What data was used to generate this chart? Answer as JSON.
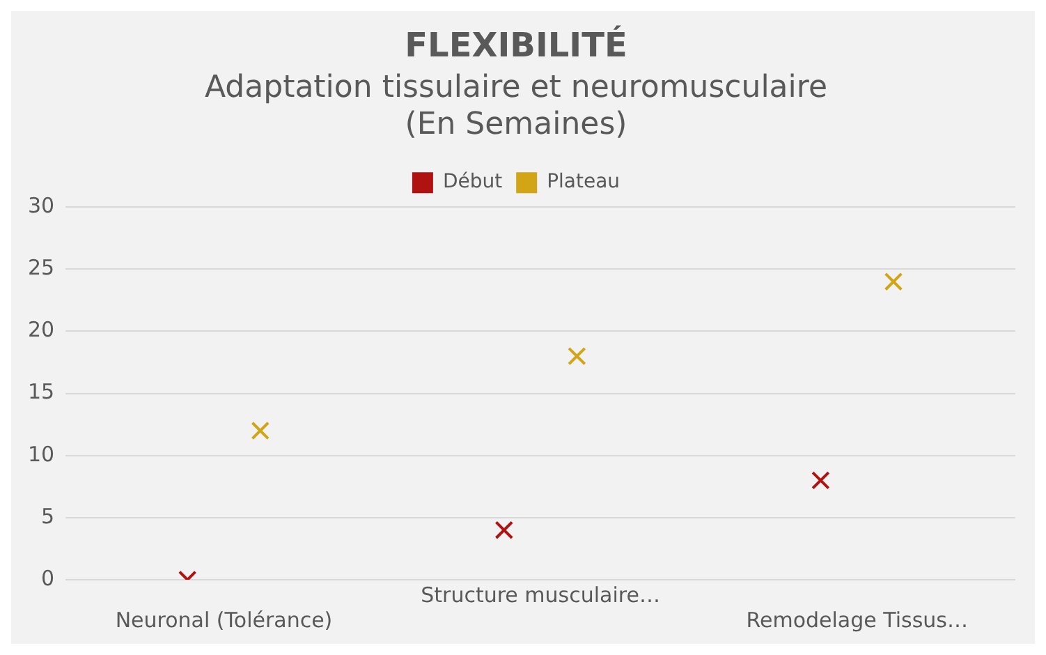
{
  "chart_data": {
    "type": "scatter",
    "title": "FLEXIBILITÉ",
    "subtitle": "Adaptation tissulaire et neuromusculaire\n(En Semaines)",
    "categories": [
      "Neuronal (Tolérance)",
      "Structure musculaire…",
      "Remodelage Tissus…"
    ],
    "series": [
      {
        "name": "Début",
        "color": "#b01212",
        "values": [
          0,
          4,
          8
        ]
      },
      {
        "name": "Plateau",
        "color": "#d1a516",
        "values": [
          12,
          18,
          24
        ]
      }
    ],
    "ylim": [
      0,
      30
    ],
    "yticks": [
      0,
      5,
      10,
      15,
      20,
      25,
      30
    ],
    "grid": "y",
    "legend": "top",
    "marker": "cross"
  }
}
